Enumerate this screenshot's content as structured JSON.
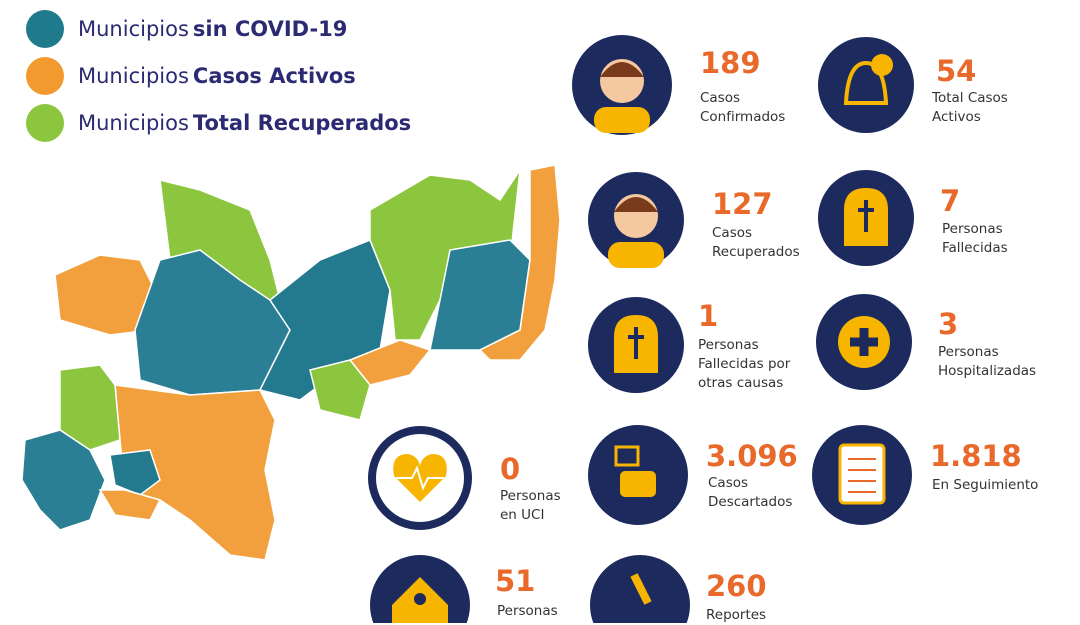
{
  "legend": [
    {
      "prefix": "Municipios",
      "bold": "sin COVID-19"
    },
    {
      "prefix": "Municipios",
      "bold": "Casos Activos"
    },
    {
      "prefix": "Municipios",
      "bold": "Total Recuperados"
    }
  ],
  "stats": [
    {
      "number": "189",
      "label": [
        "Casos",
        "Confirmados"
      ]
    },
    {
      "number": "54",
      "label": [
        "Total Casos",
        "Activos"
      ]
    },
    {
      "number": "127",
      "label": [
        "Casos",
        "Recuperados"
      ]
    },
    {
      "number": "7",
      "label": [
        "Personas",
        "Fallecidas"
      ]
    },
    {
      "number": "1",
      "label": [
        "Personas",
        "Fallecidas por",
        "otras causas"
      ]
    },
    {
      "number": "3",
      "label": [
        "Personas",
        "Hospitalizadas"
      ]
    },
    {
      "number": "0",
      "label": [
        "Personas",
        "en UCI"
      ]
    },
    {
      "number": "3.096",
      "label": [
        "Casos",
        "Descartados"
      ]
    },
    {
      "number": "1.818",
      "label": [
        "En Seguimiento"
      ]
    },
    {
      "number": "51",
      "label": [
        "Personas"
      ]
    },
    {
      "number": "260",
      "label": [
        "Reportes"
      ]
    }
  ]
}
